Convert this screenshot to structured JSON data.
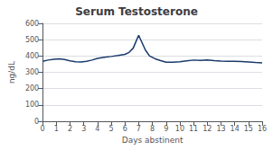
{
  "chart_data": {
    "type": "line",
    "title": "Serum Testosterone",
    "xlabel": "Days abstinent",
    "ylabel": "ng/dL",
    "x": [
      0,
      0.4,
      0.8,
      1.2,
      1.6,
      2.0,
      2.4,
      2.8,
      3.2,
      3.6,
      4.0,
      4.5,
      5.0,
      5.5,
      6.0,
      6.3,
      6.6,
      6.8,
      7.0,
      7.2,
      7.5,
      7.8,
      8.2,
      8.6,
      9.0,
      9.5,
      10.0,
      10.5,
      11.0,
      11.5,
      12.0,
      12.5,
      13.0,
      13.5,
      14.0,
      14.5,
      15.0,
      15.5,
      16.0
    ],
    "values": [
      368,
      375,
      380,
      383,
      378,
      370,
      365,
      363,
      368,
      375,
      385,
      392,
      397,
      403,
      410,
      422,
      448,
      488,
      527,
      490,
      435,
      400,
      383,
      372,
      362,
      362,
      365,
      370,
      375,
      373,
      376,
      372,
      369,
      367,
      368,
      366,
      363,
      360,
      358
    ],
    "color": "#1a3a6b",
    "xlim": [
      0,
      16
    ],
    "xticks": [
      0,
      1,
      2,
      3,
      4,
      5,
      6,
      7,
      8,
      9,
      10,
      11,
      12,
      13,
      14,
      15,
      16
    ],
    "ylim": [
      0,
      600
    ],
    "yticks": [
      0,
      100,
      200,
      300,
      400,
      500,
      600
    ],
    "grid": "y"
  }
}
